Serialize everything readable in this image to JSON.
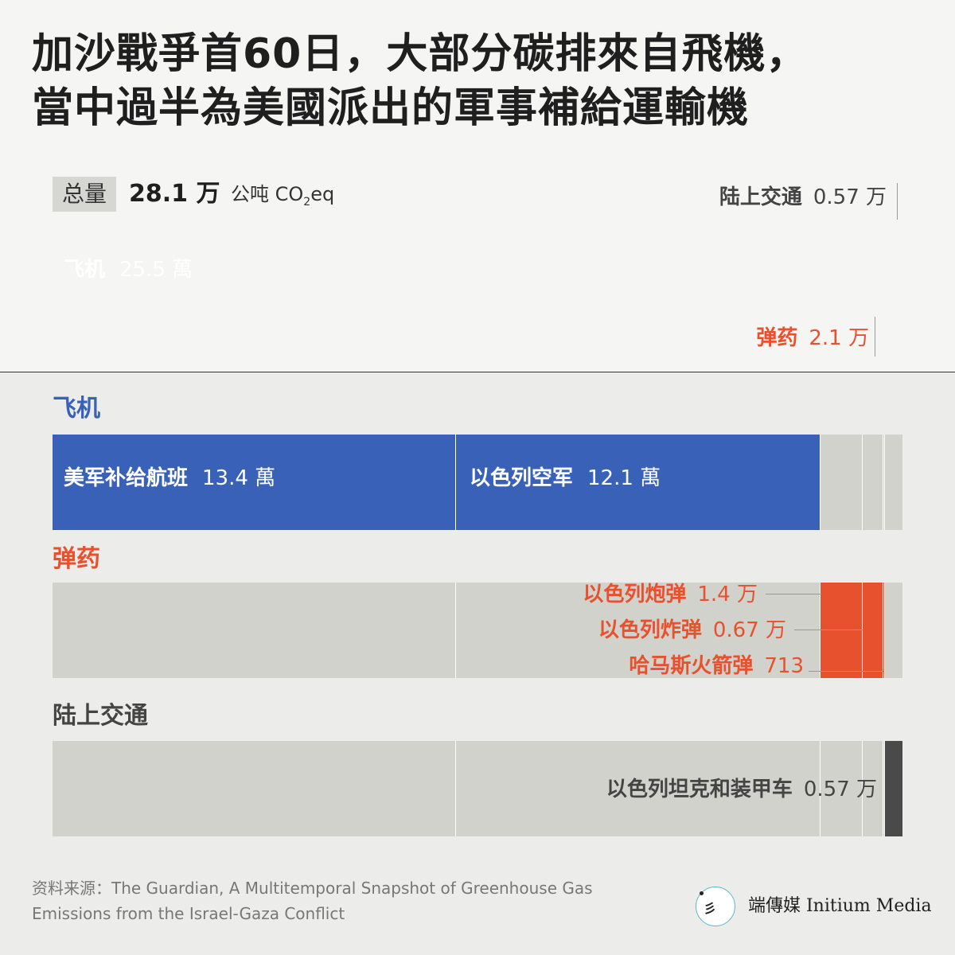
{
  "title_lines": [
    "加沙戰爭首60日，大部分碳排來自飛機，",
    "當中過半為美國派出的軍事補給運輸機"
  ],
  "total": {
    "tag": "总量",
    "value": "28.1 万",
    "unit_prefix": "公吨 CO",
    "unit_sub": "2",
    "unit_suffix": "eq"
  },
  "colors": {
    "aircraft": "#3a61b8",
    "munitions": "#e8512e",
    "ground": "#4a4a4a",
    "inactive": "#d2d2cc"
  },
  "chart_data": [
    {
      "type": "bar",
      "orientation": "horizontal-stacked",
      "total": 28.1,
      "categories": [
        "飞机",
        "弹药",
        "陆上交通"
      ],
      "values": [
        25.5,
        2.1,
        0.57
      ],
      "labels": [
        {
          "name": "飞机",
          "value": "25.5 萬"
        },
        {
          "name": "弹药",
          "value": "2.1 万"
        },
        {
          "name": "陆上交通",
          "value": "0.57 万"
        }
      ]
    },
    {
      "type": "bar",
      "orientation": "horizontal-stacked",
      "title": "飞机",
      "segments": [
        {
          "name": "美军补给航班",
          "value": 13.4,
          "label": "13.4 萬",
          "group": "aircraft"
        },
        {
          "name": "以色列空军",
          "value": 12.1,
          "label": "12.1 萬",
          "group": "aircraft"
        },
        {
          "name": "",
          "value": 1.4,
          "group": "munitions"
        },
        {
          "name": "",
          "value": 0.67,
          "group": "munitions"
        },
        {
          "name": "",
          "value": 0.0713,
          "group": "munitions"
        },
        {
          "name": "",
          "value": 0.57,
          "group": "ground"
        }
      ]
    },
    {
      "type": "bar",
      "orientation": "horizontal-stacked",
      "title": "弹药",
      "segments": [
        {
          "name": "",
          "value": 13.4,
          "group": "aircraft"
        },
        {
          "name": "",
          "value": 12.1,
          "group": "aircraft"
        },
        {
          "name": "以色列炮弹",
          "value": 1.4,
          "label": "1.4 万",
          "group": "munitions"
        },
        {
          "name": "以色列炸弹",
          "value": 0.67,
          "label": "0.67 万",
          "group": "munitions"
        },
        {
          "name": "哈马斯火箭弹",
          "value": 0.0713,
          "label": "713",
          "group": "munitions"
        },
        {
          "name": "",
          "value": 0.57,
          "group": "ground"
        }
      ]
    },
    {
      "type": "bar",
      "orientation": "horizontal-stacked",
      "title": "陆上交通",
      "segments": [
        {
          "name": "",
          "value": 13.4,
          "group": "aircraft"
        },
        {
          "name": "",
          "value": 12.1,
          "group": "aircraft"
        },
        {
          "name": "",
          "value": 1.4,
          "group": "munitions"
        },
        {
          "name": "",
          "value": 0.67,
          "group": "munitions"
        },
        {
          "name": "",
          "value": 0.0713,
          "group": "munitions"
        },
        {
          "name": "以色列坦克和装甲车",
          "value": 0.57,
          "label": "0.57 万",
          "group": "ground"
        }
      ]
    }
  ],
  "sections": {
    "aircraft": "飞机",
    "munitions": "弹药",
    "ground": "陆上交通"
  },
  "source": "资料来源：The Guardian, A Multitemporal Snapshot of Greenhouse Gas Emissions from the Israel-Gaza Conflict",
  "logo": {
    "glyph": "彡",
    "name": "端傳媒 Initium Media"
  }
}
